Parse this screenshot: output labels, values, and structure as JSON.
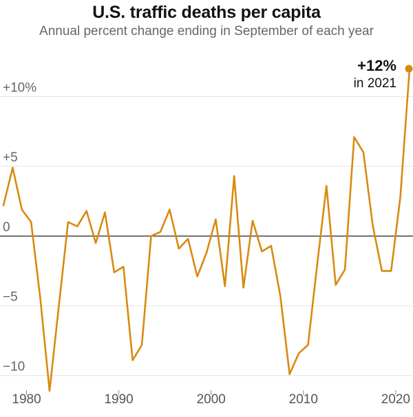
{
  "colors": {
    "series": "#d88a0f",
    "grid": "#e2e2e2",
    "zero": "#222222"
  },
  "chart_data": {
    "type": "line",
    "title": "U.S. traffic deaths per capita",
    "subtitle": "Annual percent change ending in September of each year",
    "xlabel": "",
    "ylabel": "",
    "xlim": [
      1977.5,
      2021.5
    ],
    "ylim": [
      -11,
      12
    ],
    "y_ticks": [
      {
        "value": 10,
        "label": "+10%"
      },
      {
        "value": 5,
        "label": "+5"
      },
      {
        "value": 0,
        "label": "0"
      },
      {
        "value": -5,
        "label": "−5"
      },
      {
        "value": -10,
        "label": "−10"
      }
    ],
    "x_ticks": [
      {
        "value": 1980,
        "label": "1980"
      },
      {
        "value": 1990,
        "label": "1990"
      },
      {
        "value": 2000,
        "label": "2000"
      },
      {
        "value": 2010,
        "label": "2010"
      },
      {
        "value": 2020,
        "label": "2020"
      }
    ],
    "grid": true,
    "series": [
      {
        "x": [
          1977.5,
          1978.5,
          1979.5,
          1980.5,
          1981.5,
          1982.5,
          1983.5,
          1984.5,
          1985.5,
          1986.5,
          1987.5,
          1988.5,
          1989.5,
          1990.5,
          1991.5,
          1992.5,
          1993.5,
          1994.5,
          1995.5,
          1996.5,
          1997.5,
          1998.5,
          1999.5,
          2000.5,
          2001.5,
          2002.5,
          2003.5,
          2004.5,
          2005.5,
          2006.5,
          2007.5,
          2008.5,
          2009.5,
          2010.5,
          2011.5,
          2012.5,
          2013.5,
          2014.5,
          2015.5,
          2016.5,
          2017.5,
          2018.5,
          2019.5,
          2020.5,
          2021.5
        ],
        "y": [
          2.2,
          4.9,
          1.9,
          1.0,
          -4.5,
          -11.1,
          -5.0,
          1.0,
          0.7,
          1.8,
          -0.5,
          1.7,
          -2.6,
          -2.2,
          -8.9,
          -7.8,
          0.0,
          0.3,
          1.9,
          -0.9,
          -0.2,
          -2.9,
          -1.2,
          1.2,
          -3.6,
          4.3,
          -3.7,
          1.1,
          -1.1,
          -0.7,
          -4.3,
          -9.9,
          -8.4,
          -7.8,
          -2.0,
          3.6,
          -3.5,
          -2.4,
          7.1,
          6.0,
          0.8,
          -2.5,
          -2.5,
          2.8,
          12.0
        ]
      }
    ],
    "annotation": {
      "value": "+12%",
      "text": "in 2021"
    }
  }
}
